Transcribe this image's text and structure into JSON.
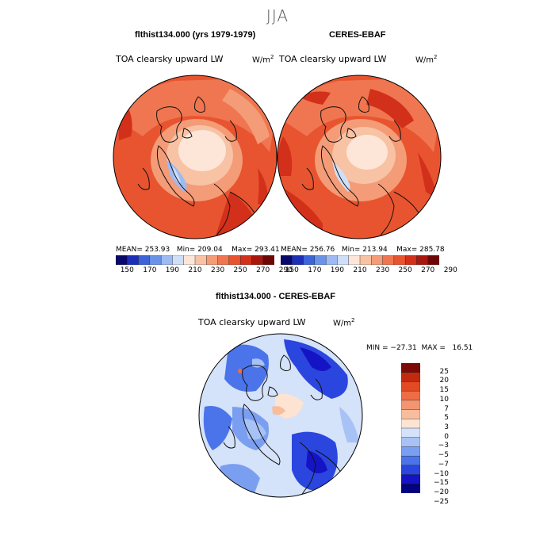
{
  "season": "JJA",
  "top_left": {
    "title": "flthist134.000 (yrs 1979-1979)",
    "variable": "TOA clearsky upward LW",
    "units_base": "W/m",
    "units_exp": "2",
    "stats": "MEAN= 253.93   Min= 209.04    Max= 293.41"
  },
  "top_right": {
    "title": "CERES-EBAF",
    "variable": "TOA clearsky upward LW",
    "units_base": "W/m",
    "units_exp": "2",
    "stats": "MEAN= 256.76   Min= 213.94    Max= 285.78"
  },
  "bottom": {
    "title": "flthist134.000 - CERES-EBAF",
    "variable": "TOA clearsky upward LW",
    "units_base": "W/m",
    "units_exp": "2",
    "minmax": "MIN = −27.31  MAX =   16.51"
  },
  "colors": {
    "abs_scale": [
      "#08086b",
      "#1c2fb6",
      "#3d63d8",
      "#6a93e8",
      "#9dbaf2",
      "#cfdff8",
      "#fde6d8",
      "#f8c2a4",
      "#f49c77",
      "#ef7650",
      "#e8542f",
      "#d2301a",
      "#a8160e",
      "#6e0606"
    ],
    "diff_scale": [
      "#030380",
      "#1414c4",
      "#2b46de",
      "#4b74ea",
      "#7b9ff0",
      "#a8c2f5",
      "#d4e2fa",
      "#fce3d2",
      "#f7bd9c",
      "#f39571",
      "#ee6d47",
      "#e24a24",
      "#c22a10",
      "#7d0a06"
    ]
  },
  "chart_data": [
    {
      "type": "heatmap",
      "title": "flthist134.000 (yrs 1979-1979)",
      "variable": "TOA clearsky upward LW",
      "units": "W/m2",
      "projection": "north polar stereographic",
      "colorbar_ticks": [
        "150",
        "170",
        "190",
        "210",
        "230",
        "250",
        "270",
        "290"
      ],
      "mean": 253.93,
      "min": 209.04,
      "max": 293.41
    },
    {
      "type": "heatmap",
      "title": "CERES-EBAF",
      "variable": "TOA clearsky upward LW",
      "units": "W/m2",
      "projection": "north polar stereographic",
      "colorbar_ticks": [
        "150",
        "170",
        "190",
        "210",
        "230",
        "250",
        "270",
        "290"
      ],
      "mean": 256.76,
      "min": 213.94,
      "max": 285.78
    },
    {
      "type": "heatmap",
      "title": "flthist134.000 - CERES-EBAF",
      "variable": "TOA clearsky upward LW",
      "units": "W/m2",
      "projection": "north polar stereographic",
      "colorbar_ticks": [
        "25",
        "20",
        "15",
        "10",
        "7",
        "5",
        "3",
        "0",
        "−3",
        "−5",
        "−7",
        "−10",
        "−15",
        "−20",
        "−25"
      ],
      "min": -27.31,
      "max": 16.51
    }
  ]
}
